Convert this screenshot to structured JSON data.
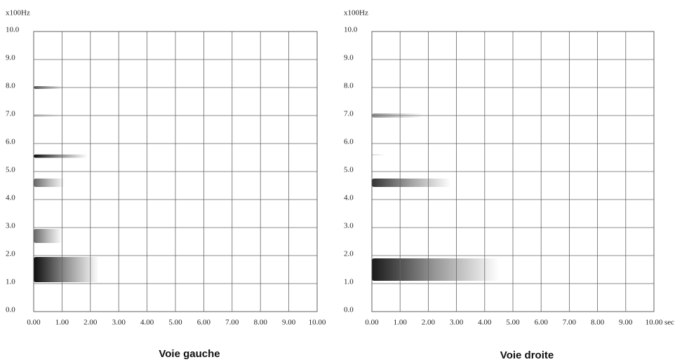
{
  "chart_data": [
    {
      "type": "spectrogram",
      "title": "Voie gauche",
      "y_label": "x100Hz",
      "color": "#000000",
      "grid": true,
      "xlim": [
        0,
        10
      ],
      "ylim": [
        0,
        10
      ],
      "xticks": [
        {
          "value": 0,
          "label": "0.00"
        },
        {
          "value": 1,
          "label": "1.00"
        },
        {
          "value": 2,
          "label": "2.00"
        },
        {
          "value": 3,
          "label": "3.00"
        },
        {
          "value": 4,
          "label": "4.00"
        },
        {
          "value": 5,
          "label": "5.00"
        },
        {
          "value": 6,
          "label": "6.00"
        },
        {
          "value": 7,
          "label": "7.00"
        },
        {
          "value": 8,
          "label": "8.00"
        },
        {
          "value": 9,
          "label": "9.00"
        },
        {
          "value": 10,
          "label": "10.00"
        }
      ],
      "yticks": [
        {
          "value": 0,
          "label": "0.0"
        },
        {
          "value": 1,
          "label": "1.0"
        },
        {
          "value": 2,
          "label": "2.0"
        },
        {
          "value": 3,
          "label": "3.0"
        },
        {
          "value": 4,
          "label": "4.0"
        },
        {
          "value": 5,
          "label": "5.0"
        },
        {
          "value": 6,
          "label": "6.0"
        },
        {
          "value": 7,
          "label": "7.0"
        },
        {
          "value": 8,
          "label": "8.0"
        },
        {
          "value": 9,
          "label": "9.0"
        },
        {
          "value": 10,
          "label": "10.0"
        }
      ],
      "bands": [
        {
          "freq": 1.5,
          "width": 0.9,
          "duration": 2.3,
          "intensity": 0.95
        },
        {
          "freq": 2.7,
          "width": 0.5,
          "duration": 1.0,
          "intensity": 0.6
        },
        {
          "freq": 4.6,
          "width": 0.3,
          "duration": 1.1,
          "intensity": 0.6
        },
        {
          "freq": 5.55,
          "width": 0.12,
          "duration": 1.9,
          "intensity": 0.95
        },
        {
          "freq": 7.0,
          "width": 0.1,
          "duration": 0.9,
          "intensity": 0.2
        },
        {
          "freq": 8.0,
          "width": 0.1,
          "duration": 1.0,
          "intensity": 0.7
        }
      ]
    },
    {
      "type": "spectrogram",
      "title": "Voie droite",
      "y_label": "x100Hz",
      "x_label": "sec",
      "color": "#000000",
      "grid": true,
      "xlim": [
        0,
        10
      ],
      "ylim": [
        0,
        10
      ],
      "xticks": [
        {
          "value": 0,
          "label": "0.00"
        },
        {
          "value": 1,
          "label": "1.00"
        },
        {
          "value": 2,
          "label": "2.00"
        },
        {
          "value": 3,
          "label": "3.00"
        },
        {
          "value": 4,
          "label": "4.00"
        },
        {
          "value": 5,
          "label": "5.00"
        },
        {
          "value": 6,
          "label": "6.00"
        },
        {
          "value": 7,
          "label": "7.00"
        },
        {
          "value": 8,
          "label": "8.00"
        },
        {
          "value": 9,
          "label": "9.00"
        },
        {
          "value": 10,
          "label": "10.00"
        }
      ],
      "yticks": [
        {
          "value": 0,
          "label": "0.0"
        },
        {
          "value": 1,
          "label": "1.0"
        },
        {
          "value": 2,
          "label": "2.0"
        },
        {
          "value": 3,
          "label": "3.0"
        },
        {
          "value": 4,
          "label": "4.0"
        },
        {
          "value": 5,
          "label": "5.0"
        },
        {
          "value": 6,
          "label": "6.0"
        },
        {
          "value": 7,
          "label": "7.0"
        },
        {
          "value": 8,
          "label": "8.0"
        },
        {
          "value": 9,
          "label": "9.0"
        },
        {
          "value": 10,
          "label": "10.0"
        }
      ],
      "bands": [
        {
          "freq": 1.5,
          "width": 0.8,
          "duration": 4.5,
          "intensity": 0.9
        },
        {
          "freq": 4.6,
          "width": 0.3,
          "duration": 2.8,
          "intensity": 0.8
        },
        {
          "freq": 5.6,
          "width": 0.05,
          "duration": 0.5,
          "intensity": 0.15
        },
        {
          "freq": 7.0,
          "width": 0.15,
          "duration": 1.8,
          "intensity": 0.45
        }
      ]
    }
  ]
}
